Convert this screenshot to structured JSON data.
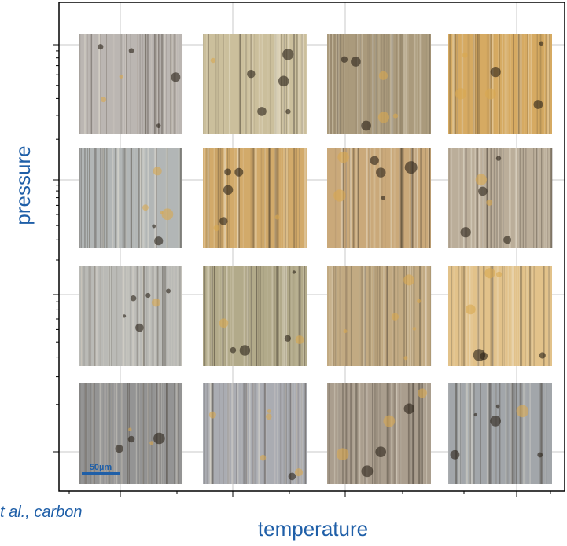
{
  "axes": {
    "y_label": "pressure",
    "x_label": "temperature"
  },
  "scale_bar": "50µm",
  "citation": "t al., carbon"
}
